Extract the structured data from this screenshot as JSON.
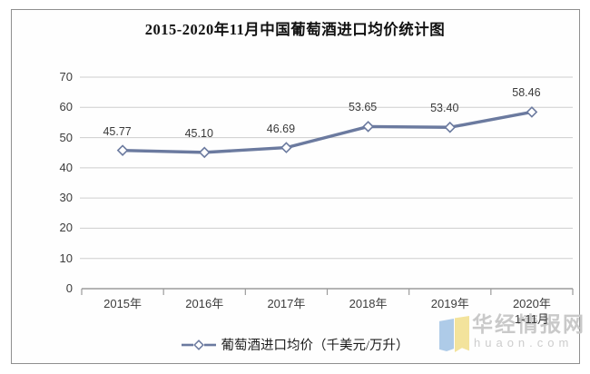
{
  "title": "2015-2020年11月中国葡萄酒进口均价统计图",
  "chart_data": {
    "type": "line",
    "title": "2015-2020年11月中国葡萄酒进口均价统计图",
    "categories": [
      "2015年",
      "2016年",
      "2017年",
      "2018年",
      "2019年",
      "2020年\n1-11月"
    ],
    "series": [
      {
        "name": "葡萄酒进口均价（千美元/万升）",
        "values": [
          45.77,
          45.1,
          46.69,
          53.65,
          53.4,
          58.46
        ]
      }
    ],
    "value_labels": [
      "45.77",
      "45.10",
      "46.69",
      "53.65",
      "53.40",
      "58.46"
    ],
    "xlabel": "",
    "ylabel": "",
    "ylim": [
      0,
      70
    ],
    "yticks": [
      0,
      10,
      20,
      30,
      40,
      50,
      60,
      70
    ],
    "grid": true,
    "legend_position": "bottom",
    "line_color": "#6b7a9f",
    "grid_color": "#cdcdcd",
    "axis_color": "#9b9b9b",
    "marker": "open-diamond"
  },
  "legend": {
    "label": "葡萄酒进口均价（千美元/万升）"
  },
  "watermark": {
    "brand": "华经情报网",
    "domain": "huaon.com",
    "logo_blue": "#aecbe8",
    "logo_yellow": "#f3e39c"
  }
}
